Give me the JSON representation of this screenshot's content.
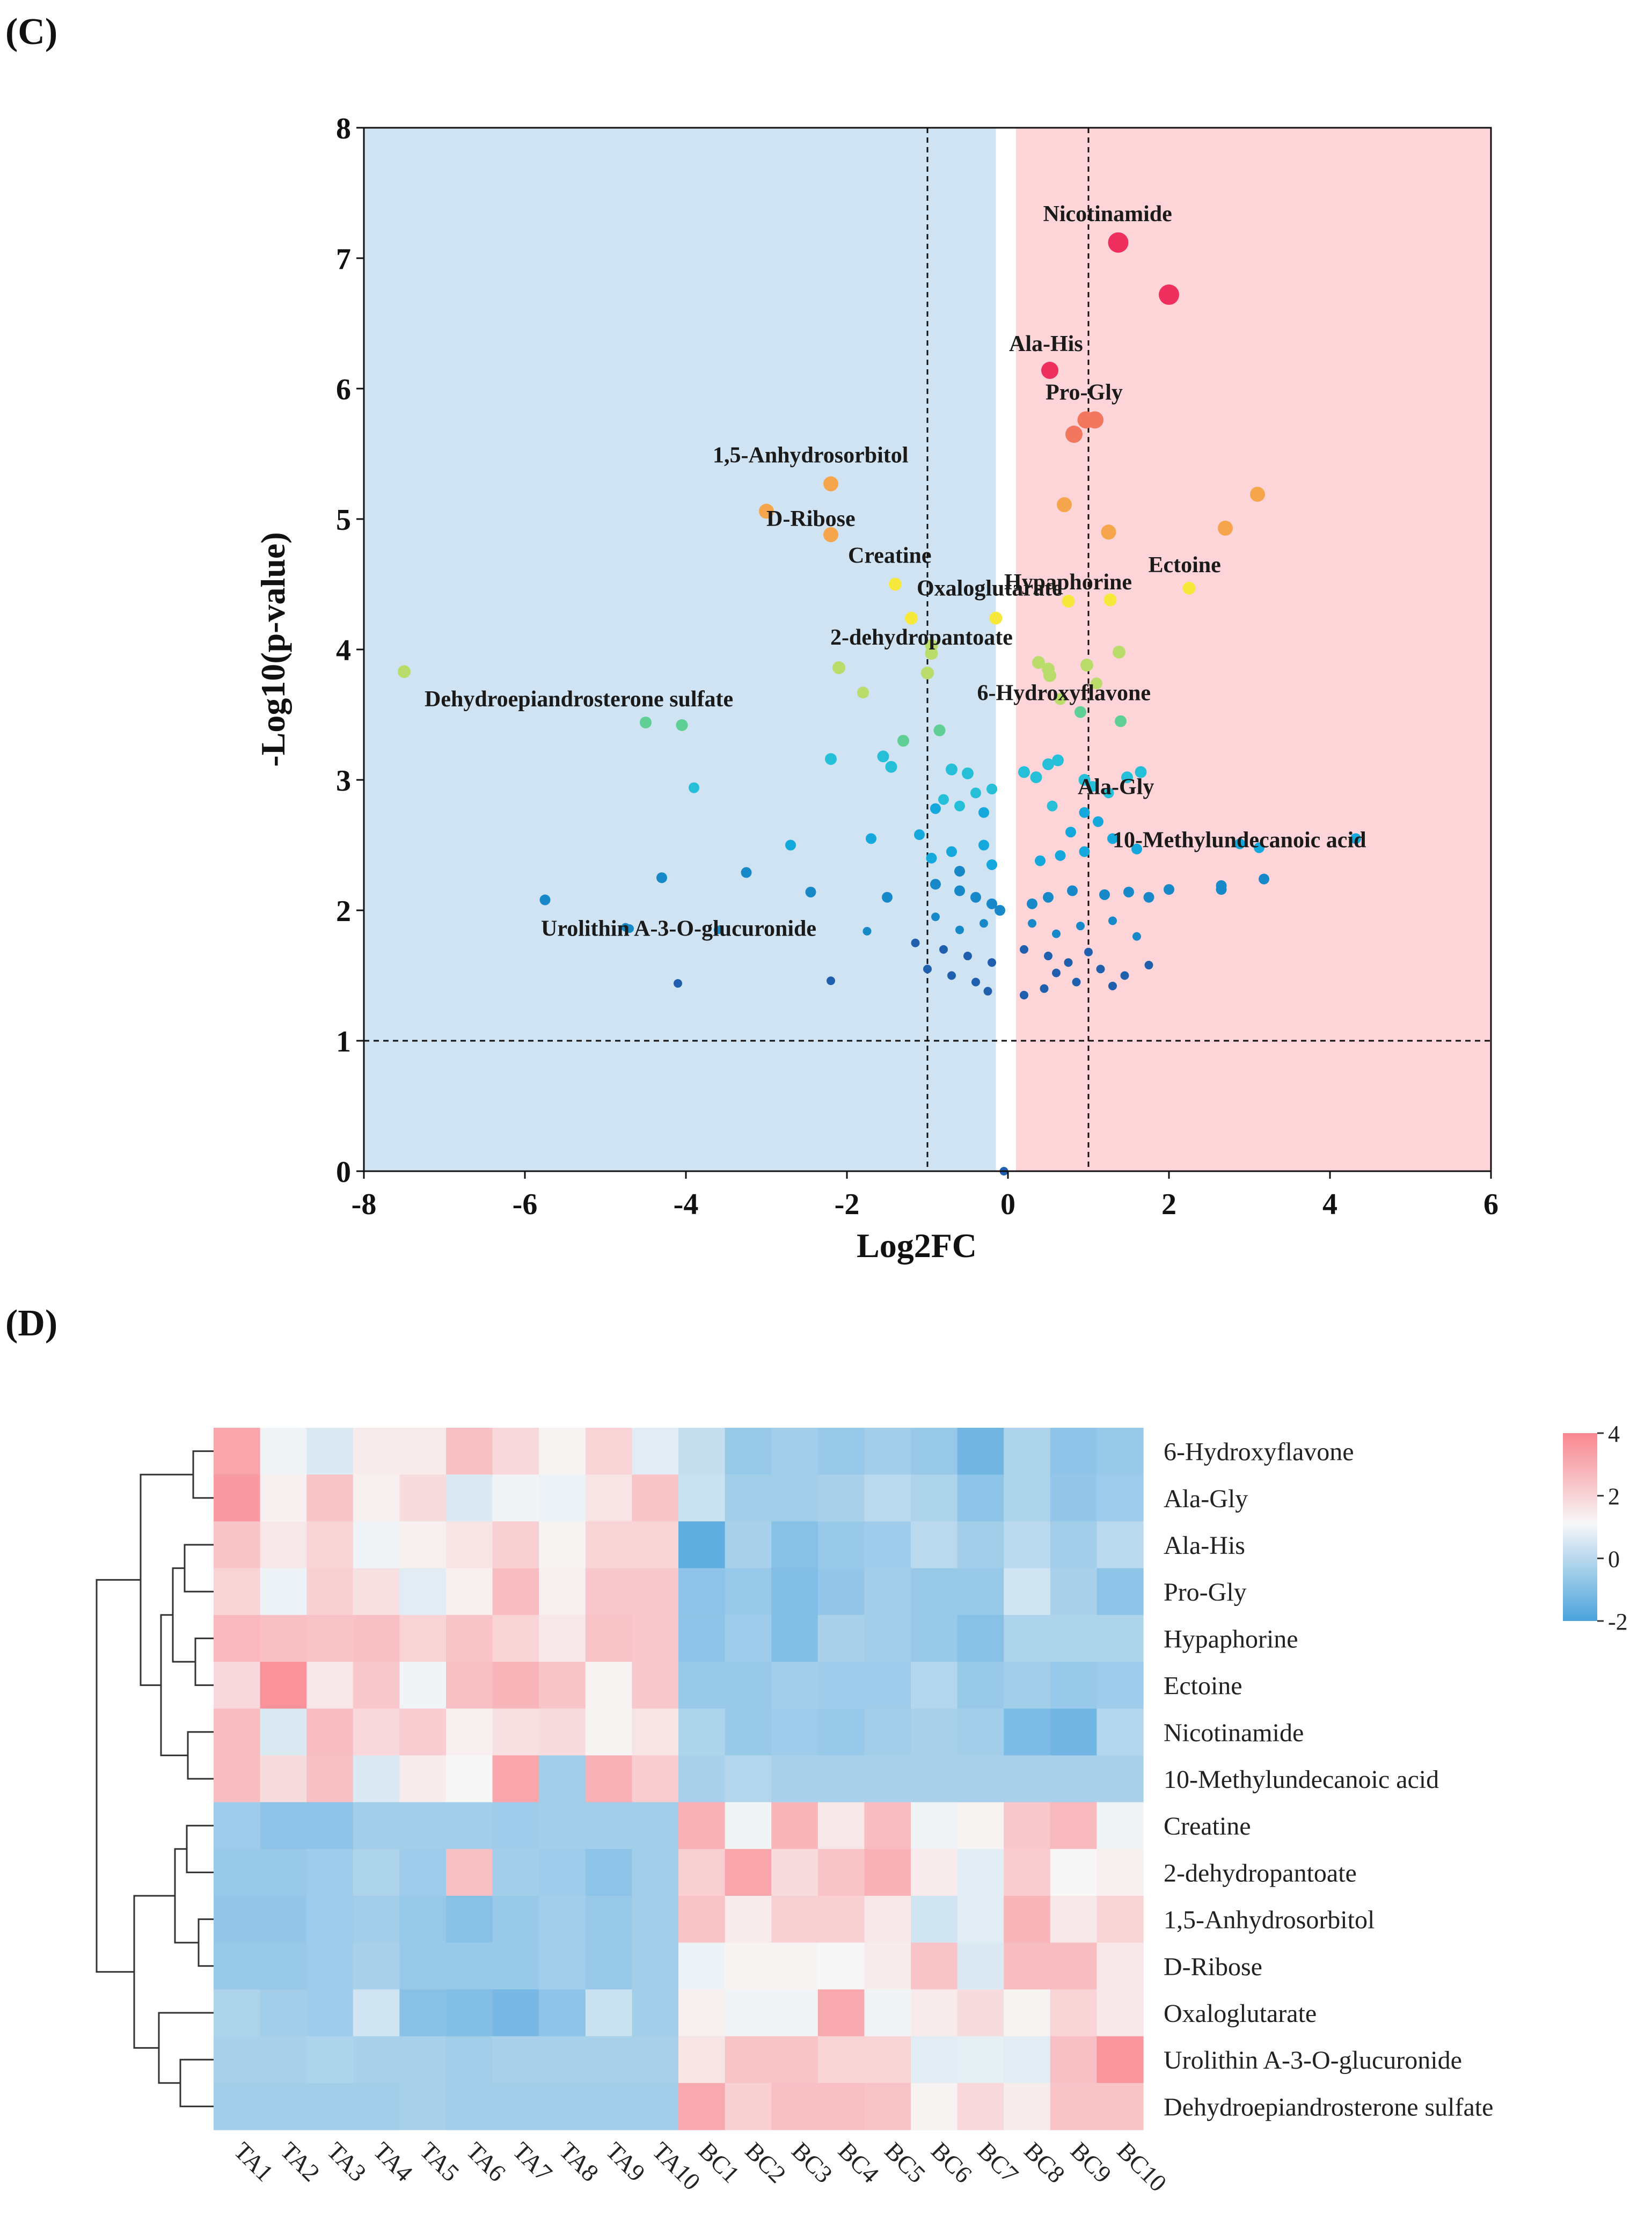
{
  "chart_data": [
    {
      "panel_label": "(C)",
      "type": "scatter",
      "xlabel": "Log2FC",
      "ylabel": "-Log10(p-value)",
      "xlim": [
        -8,
        6
      ],
      "ylim": [
        0,
        8
      ],
      "xticks": [
        -8,
        -6,
        -4,
        -2,
        0,
        2,
        4,
        6
      ],
      "yticks": [
        0,
        1,
        2,
        3,
        4,
        5,
        6,
        7,
        8
      ],
      "thresholds": {
        "log2fc": [
          -1,
          1
        ],
        "neg_log10_p": 1
      },
      "regions": {
        "down_color": "#cfe3f3",
        "up_color": "#fdd5d8"
      },
      "palette": {
        "high": "#ef2f5e",
        "p6": "#f3765e",
        "p5": "#f5a64d",
        "p45": "#f7e93b",
        "p4": "#b9dc6a",
        "p35": "#5fcf96",
        "p3": "#26bfd8",
        "p25": "#14a8dc",
        "p2": "#1889c8",
        "low": "#1f5fae"
      },
      "labels": [
        {
          "text": "Nicotinamide",
          "x": 1.37,
          "y": 7.12
        },
        {
          "text": "Ala-His",
          "x": 0.52,
          "y": 6.14
        },
        {
          "text": "Pro-Gly",
          "x": 1.0,
          "y": 5.76
        },
        {
          "text": "1,5-Anhydrosorbitol",
          "x": -2.2,
          "y": 5.27
        },
        {
          "text": "D-Ribose",
          "x": -2.2,
          "y": 4.88
        },
        {
          "text": "Creatine",
          "x": -1.4,
          "y": 4.5
        },
        {
          "text": "Oxaloglutarate",
          "x": -1.2,
          "y": 4.25
        },
        {
          "text": "Hypaphorine",
          "x": 0.7,
          "y": 4.37
        },
        {
          "text": "Ectoine",
          "x": 2.25,
          "y": 4.47
        },
        {
          "text": "2-dehydropantoate",
          "x": -0.9,
          "y": 3.98
        },
        {
          "text": "Dehydroepiandrosterone sulfate",
          "x": -4.5,
          "y": 3.44
        },
        {
          "text": "6-Hydroxyflavone",
          "x": 0.95,
          "y": 3.48
        },
        {
          "text": "Ala-Gly",
          "x": 1.0,
          "y": 2.85
        },
        {
          "text": "10-Methylundecanoic acid",
          "x": 4.3,
          "y": 2.55
        },
        {
          "text": "Urolithin A-3-O-glucuronide",
          "x": -4.8,
          "y": 1.87
        }
      ],
      "points": [
        [
          1.37,
          7.12
        ],
        [
          2.0,
          6.72
        ],
        [
          0.52,
          6.14
        ],
        [
          0.97,
          5.76
        ],
        [
          1.08,
          5.76
        ],
        [
          0.82,
          5.65
        ],
        [
          -2.2,
          5.27
        ],
        [
          -3.0,
          5.06
        ],
        [
          -2.2,
          4.88
        ],
        [
          0.7,
          5.11
        ],
        [
          1.25,
          4.9
        ],
        [
          2.7,
          4.93
        ],
        [
          3.1,
          5.19
        ],
        [
          -1.4,
          4.5
        ],
        [
          -1.2,
          4.24
        ],
        [
          -0.15,
          4.24
        ],
        [
          0.75,
          4.37
        ],
        [
          1.27,
          4.38
        ],
        [
          2.25,
          4.47
        ],
        [
          -7.5,
          3.83
        ],
        [
          -2.1,
          3.86
        ],
        [
          -0.95,
          4.03
        ],
        [
          -0.95,
          3.97
        ],
        [
          -1.8,
          3.67
        ],
        [
          -1.0,
          3.82
        ],
        [
          0.38,
          3.9
        ],
        [
          0.5,
          3.85
        ],
        [
          0.52,
          3.8
        ],
        [
          0.98,
          3.88
        ],
        [
          1.38,
          3.98
        ],
        [
          1.1,
          3.74
        ],
        [
          0.65,
          3.62
        ],
        [
          -4.5,
          3.44
        ],
        [
          -4.05,
          3.42
        ],
        [
          -0.85,
          3.38
        ],
        [
          -1.3,
          3.3
        ],
        [
          1.4,
          3.45
        ],
        [
          0.9,
          3.52
        ],
        [
          -3.9,
          2.94
        ],
        [
          -2.2,
          3.16
        ],
        [
          -1.55,
          3.18
        ],
        [
          -1.45,
          3.1
        ],
        [
          -0.7,
          3.08
        ],
        [
          -0.5,
          3.05
        ],
        [
          -0.8,
          2.85
        ],
        [
          -0.4,
          2.9
        ],
        [
          -0.2,
          2.93
        ],
        [
          -0.6,
          2.8
        ],
        [
          -0.3,
          2.75
        ],
        [
          -0.9,
          2.78
        ],
        [
          0.2,
          3.06
        ],
        [
          0.35,
          3.02
        ],
        [
          0.5,
          3.12
        ],
        [
          0.62,
          3.15
        ],
        [
          0.95,
          3.0
        ],
        [
          1.05,
          2.95
        ],
        [
          1.25,
          2.9
        ],
        [
          1.48,
          3.02
        ],
        [
          1.65,
          3.06
        ],
        [
          0.55,
          2.8
        ],
        [
          0.78,
          2.6
        ],
        [
          0.95,
          2.75
        ],
        [
          1.12,
          2.68
        ],
        [
          1.3,
          2.55
        ],
        [
          -2.7,
          2.5
        ],
        [
          -1.7,
          2.55
        ],
        [
          -1.1,
          2.58
        ],
        [
          -0.7,
          2.45
        ],
        [
          -0.3,
          2.5
        ],
        [
          -0.95,
          2.4
        ],
        [
          -0.6,
          2.3
        ],
        [
          -0.2,
          2.35
        ],
        [
          0.4,
          2.38
        ],
        [
          0.65,
          2.42
        ],
        [
          0.95,
          2.45
        ],
        [
          1.6,
          2.47
        ],
        [
          2.88,
          2.51
        ],
        [
          3.12,
          2.48
        ],
        [
          3.18,
          2.24
        ],
        [
          4.32,
          2.55
        ],
        [
          2.65,
          2.19
        ],
        [
          2.65,
          2.16
        ],
        [
          -4.3,
          2.25
        ],
        [
          -3.25,
          2.29
        ],
        [
          -2.45,
          2.14
        ],
        [
          -1.5,
          2.1
        ],
        [
          -0.9,
          2.2
        ],
        [
          -0.6,
          2.15
        ],
        [
          -0.4,
          2.1
        ],
        [
          -0.2,
          2.05
        ],
        [
          -0.1,
          2.0
        ],
        [
          0.3,
          2.05
        ],
        [
          0.5,
          2.1
        ],
        [
          0.8,
          2.15
        ],
        [
          1.2,
          2.12
        ],
        [
          1.5,
          2.14
        ],
        [
          1.75,
          2.1
        ],
        [
          2.0,
          2.16
        ],
        [
          -5.75,
          2.08
        ],
        [
          -4.75,
          1.87
        ],
        [
          -4.7,
          1.86
        ],
        [
          -3.6,
          1.85
        ],
        [
          -1.75,
          1.84
        ],
        [
          -0.9,
          1.95
        ],
        [
          -0.6,
          1.85
        ],
        [
          -0.3,
          1.9
        ],
        [
          0.3,
          1.9
        ],
        [
          0.6,
          1.82
        ],
        [
          0.9,
          1.88
        ],
        [
          1.3,
          1.92
        ],
        [
          1.6,
          1.8
        ],
        [
          -1.15,
          1.75
        ],
        [
          -0.8,
          1.7
        ],
        [
          -0.5,
          1.65
        ],
        [
          -0.2,
          1.6
        ],
        [
          0.2,
          1.7
        ],
        [
          0.5,
          1.65
        ],
        [
          0.75,
          1.6
        ],
        [
          1.0,
          1.68
        ],
        [
          1.15,
          1.55
        ],
        [
          1.75,
          1.58
        ],
        [
          -2.2,
          1.46
        ],
        [
          -4.1,
          1.44
        ],
        [
          -1.0,
          1.55
        ],
        [
          -0.7,
          1.5
        ],
        [
          -0.4,
          1.45
        ],
        [
          -0.25,
          1.38
        ],
        [
          0.2,
          1.35
        ],
        [
          0.45,
          1.4
        ],
        [
          0.6,
          1.52
        ],
        [
          0.85,
          1.45
        ],
        [
          1.3,
          1.42
        ],
        [
          1.45,
          1.5
        ],
        [
          -0.05,
          0.0
        ]
      ]
    },
    {
      "panel_label": "(D)",
      "type": "heatmap",
      "columns": [
        "TA1",
        "TA2",
        "TA3",
        "TA4",
        "TA5",
        "TA6",
        "TA7",
        "TA8",
        "TA9",
        "TA10",
        "BC1",
        "BC2",
        "BC3",
        "BC4",
        "BC5",
        "BC6",
        "BC7",
        "BC8",
        "BC9",
        "BC10"
      ],
      "rows": [
        "6-Hydroxyflavone",
        "Ala-Gly",
        "Ala-His",
        "Pro-Gly",
        "Hypaphorine",
        "Ectoine",
        "Nicotinamide",
        "10-Methylundecanoic acid",
        "Creatine",
        "2-dehydropantoate",
        "1,5-Anhydrosorbitol",
        "D-Ribose",
        "Oxaloglutarate",
        "Urolithin A-3-O-glucuronide",
        "Dehydroepiandrosterone sulfate"
      ],
      "colorbar": {
        "ticks": [
          4,
          2,
          0,
          -2
        ],
        "min": -2,
        "max": 4,
        "low": "#4aa3dd",
        "mid": "#f7f7f7",
        "high": "#f9868f"
      },
      "values": [
        [
          3.2,
          1.0,
          0.6,
          1.4,
          1.4,
          2.5,
          1.9,
          1.2,
          2.0,
          0.7,
          0.2,
          -0.6,
          -0.4,
          -0.6,
          -0.4,
          -0.6,
          -1.3,
          -0.2,
          -0.8,
          -0.6
        ],
        [
          3.5,
          1.3,
          2.4,
          1.3,
          1.8,
          0.6,
          1.0,
          0.9,
          1.6,
          2.4,
          0.3,
          -0.4,
          -0.4,
          -0.3,
          0.0,
          -0.2,
          -0.8,
          -0.2,
          -0.7,
          -0.5
        ],
        [
          2.4,
          1.5,
          2.0,
          1.0,
          1.3,
          1.6,
          2.1,
          1.2,
          2.0,
          2.0,
          -1.6,
          -0.3,
          -0.9,
          -0.6,
          -0.5,
          0.0,
          -0.4,
          0.0,
          -0.4,
          0.0
        ],
        [
          2.0,
          0.9,
          2.1,
          1.7,
          0.7,
          1.3,
          2.6,
          1.3,
          2.3,
          2.3,
          -0.8,
          -0.6,
          -1.0,
          -0.7,
          -0.4,
          -0.6,
          -0.6,
          0.4,
          -0.3,
          -0.8
        ],
        [
          2.7,
          2.5,
          2.4,
          2.5,
          2.0,
          2.4,
          2.0,
          1.5,
          2.4,
          2.3,
          -0.8,
          -0.5,
          -1.0,
          -0.3,
          -0.4,
          -0.6,
          -0.9,
          -0.2,
          -0.2,
          -0.2
        ],
        [
          1.9,
          3.7,
          1.5,
          2.3,
          1.0,
          2.5,
          2.8,
          2.4,
          1.2,
          2.3,
          -0.6,
          -0.6,
          -0.4,
          -0.5,
          -0.5,
          -0.1,
          -0.6,
          -0.4,
          -0.6,
          -0.5
        ],
        [
          2.6,
          0.6,
          2.6,
          1.9,
          2.2,
          1.3,
          1.7,
          1.8,
          1.2,
          1.6,
          -0.2,
          -0.6,
          -0.5,
          -0.6,
          -0.4,
          -0.3,
          -0.4,
          -1.1,
          -1.3,
          -0.1
        ],
        [
          2.6,
          1.8,
          2.5,
          0.6,
          1.4,
          1.1,
          3.2,
          -0.4,
          2.9,
          2.2,
          -0.3,
          -0.1,
          -0.3,
          -0.3,
          -0.3,
          -0.3,
          -0.3,
          -0.3,
          -0.3,
          -0.3
        ],
        [
          -0.5,
          -0.8,
          -0.8,
          -0.4,
          -0.4,
          -0.4,
          -0.5,
          -0.4,
          -0.4,
          -0.4,
          2.9,
          1.0,
          2.8,
          1.5,
          2.6,
          1.0,
          1.2,
          2.3,
          2.7,
          1.0
        ],
        [
          -0.6,
          -0.6,
          -0.5,
          -0.2,
          -0.5,
          2.5,
          -0.4,
          -0.5,
          -0.8,
          -0.4,
          2.1,
          3.2,
          1.8,
          2.4,
          2.9,
          1.4,
          0.7,
          2.2,
          1.1,
          1.3
        ],
        [
          -0.7,
          -0.7,
          -0.5,
          -0.4,
          -0.6,
          -0.9,
          -0.6,
          -0.4,
          -0.6,
          -0.4,
          2.4,
          1.4,
          2.1,
          2.1,
          1.5,
          0.4,
          0.7,
          2.8,
          1.5,
          2.0
        ],
        [
          -0.6,
          -0.6,
          -0.5,
          -0.3,
          -0.6,
          -0.6,
          -0.6,
          -0.4,
          -0.6,
          -0.4,
          0.9,
          1.2,
          1.2,
          1.1,
          1.4,
          2.4,
          0.6,
          2.6,
          2.6,
          1.5
        ],
        [
          -0.2,
          -0.4,
          -0.5,
          0.4,
          -0.9,
          -1.0,
          -1.2,
          -0.8,
          0.3,
          -0.4,
          1.3,
          1.0,
          1.0,
          3.1,
          1.0,
          1.4,
          1.8,
          1.2,
          2.0,
          1.5
        ],
        [
          -0.3,
          -0.3,
          -0.2,
          -0.3,
          -0.3,
          -0.4,
          -0.3,
          -0.3,
          -0.3,
          -0.3,
          1.6,
          2.4,
          2.4,
          2.0,
          2.0,
          0.7,
          0.8,
          0.7,
          2.5,
          3.6
        ],
        [
          -0.4,
          -0.4,
          -0.4,
          -0.4,
          -0.3,
          -0.4,
          -0.4,
          -0.4,
          -0.4,
          -0.4,
          3.1,
          2.1,
          2.5,
          2.5,
          2.4,
          1.2,
          1.9,
          1.4,
          2.4,
          2.4
        ]
      ]
    }
  ]
}
